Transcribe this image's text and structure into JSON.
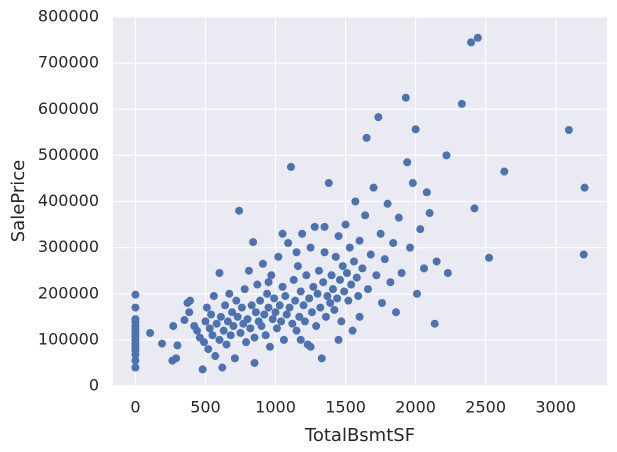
{
  "chart_data": {
    "type": "scatter",
    "x_label": "TotalBsmtSF",
    "y_label": "SalePrice",
    "color": "#4c72b0",
    "grid": true,
    "xlim": [
      -160,
      3366
    ],
    "ylim": [
      0,
      800000
    ],
    "xticks": [
      0,
      500,
      1000,
      1500,
      2000,
      2500,
      3000
    ],
    "yticks": [
      0,
      100000,
      200000,
      300000,
      400000,
      500000,
      600000,
      700000,
      800000
    ],
    "x": [
      0,
      0,
      0,
      0,
      0,
      0,
      0,
      0,
      0,
      0,
      0,
      0,
      0,
      0,
      0,
      105,
      190,
      264,
      270,
      290,
      300,
      350,
      372,
      384,
      390,
      420,
      440,
      460,
      480,
      490,
      500,
      510,
      520,
      530,
      540,
      550,
      560,
      570,
      580,
      600,
      600,
      610,
      620,
      630,
      640,
      650,
      660,
      670,
      680,
      690,
      700,
      710,
      720,
      730,
      740,
      750,
      760,
      770,
      780,
      790,
      800,
      810,
      820,
      830,
      840,
      850,
      860,
      870,
      880,
      890,
      900,
      910,
      920,
      930,
      940,
      950,
      960,
      970,
      980,
      990,
      1000,
      1010,
      1020,
      1030,
      1040,
      1050,
      1060,
      1070,
      1080,
      1090,
      1100,
      1110,
      1120,
      1130,
      1140,
      1150,
      1160,
      1170,
      1180,
      1190,
      1200,
      1210,
      1220,
      1230,
      1240,
      1250,
      1260,
      1270,
      1280,
      1290,
      1300,
      1310,
      1320,
      1330,
      1340,
      1350,
      1360,
      1370,
      1380,
      1390,
      1400,
      1410,
      1420,
      1430,
      1440,
      1450,
      1460,
      1470,
      1480,
      1490,
      1500,
      1510,
      1520,
      1530,
      1540,
      1550,
      1560,
      1570,
      1580,
      1590,
      1600,
      1620,
      1640,
      1650,
      1660,
      1680,
      1700,
      1720,
      1734,
      1750,
      1760,
      1780,
      1800,
      1820,
      1840,
      1860,
      1880,
      1900,
      1930,
      1940,
      1960,
      1980,
      2000,
      2010,
      2033,
      2060,
      2080,
      2100,
      2136,
      2150,
      2220,
      2230,
      2330,
      2396,
      2420,
      2444,
      2524,
      2633,
      3094,
      3206,
      3200,
      1150,
      1250,
      1450,
      1600,
      850,
      950,
      1050,
      1350,
      1180
    ],
    "values": [
      40000,
      55000,
      68000,
      78000,
      85000,
      92000,
      100000,
      108000,
      115000,
      122000,
      130000,
      139000,
      145000,
      170000,
      198000,
      115000,
      92000,
      55000,
      130000,
      60000,
      88000,
      143000,
      180000,
      160000,
      185000,
      130000,
      120000,
      105000,
      36000,
      95000,
      140000,
      170000,
      80000,
      125000,
      155000,
      110000,
      195000,
      65000,
      135000,
      245000,
      100000,
      150000,
      40000,
      120000,
      175000,
      90000,
      140000,
      200000,
      110000,
      160000,
      130000,
      60000,
      185000,
      150000,
      380000,
      115000,
      170000,
      135000,
      210000,
      95000,
      145000,
      250000,
      125000,
      175000,
      312000,
      105000,
      160000,
      220000,
      140000,
      185000,
      130000,
      265000,
      155000,
      110000,
      200000,
      170000,
      85000,
      240000,
      145000,
      190000,
      160000,
      125000,
      280000,
      175000,
      140000,
      215000,
      100000,
      195000,
      155000,
      310000,
      170000,
      475000,
      135000,
      230000,
      185000,
      120000,
      260000,
      150000,
      205000,
      330000,
      175000,
      140000,
      240000,
      90000,
      190000,
      300000,
      160000,
      215000,
      345000,
      130000,
      200000,
      250000,
      170000,
      60000,
      225000,
      290000,
      150000,
      195000,
      440000,
      180000,
      240000,
      210000,
      165000,
      280000,
      190000,
      325000,
      230000,
      140000,
      260000,
      205000,
      350000,
      245000,
      185000,
      300000,
      220000,
      120000,
      270000,
      400000,
      235000,
      195000,
      315000,
      255000,
      370000,
      538000,
      210000,
      285000,
      430000,
      240000,
      582933,
      330000,
      180000,
      275000,
      395000,
      225000,
      310000,
      160000,
      365000,
      245000,
      625000,
      485000,
      300000,
      440000,
      556581,
      200000,
      340000,
      255000,
      420000,
      375000,
      135000,
      270000,
      500000,
      245000,
      611657,
      745000,
      385000,
      755000,
      278000,
      465000,
      555000,
      430000,
      285000,
      290000,
      85000,
      100000,
      150000,
      50000,
      225000,
      330000,
      345000,
      100000
    ]
  }
}
